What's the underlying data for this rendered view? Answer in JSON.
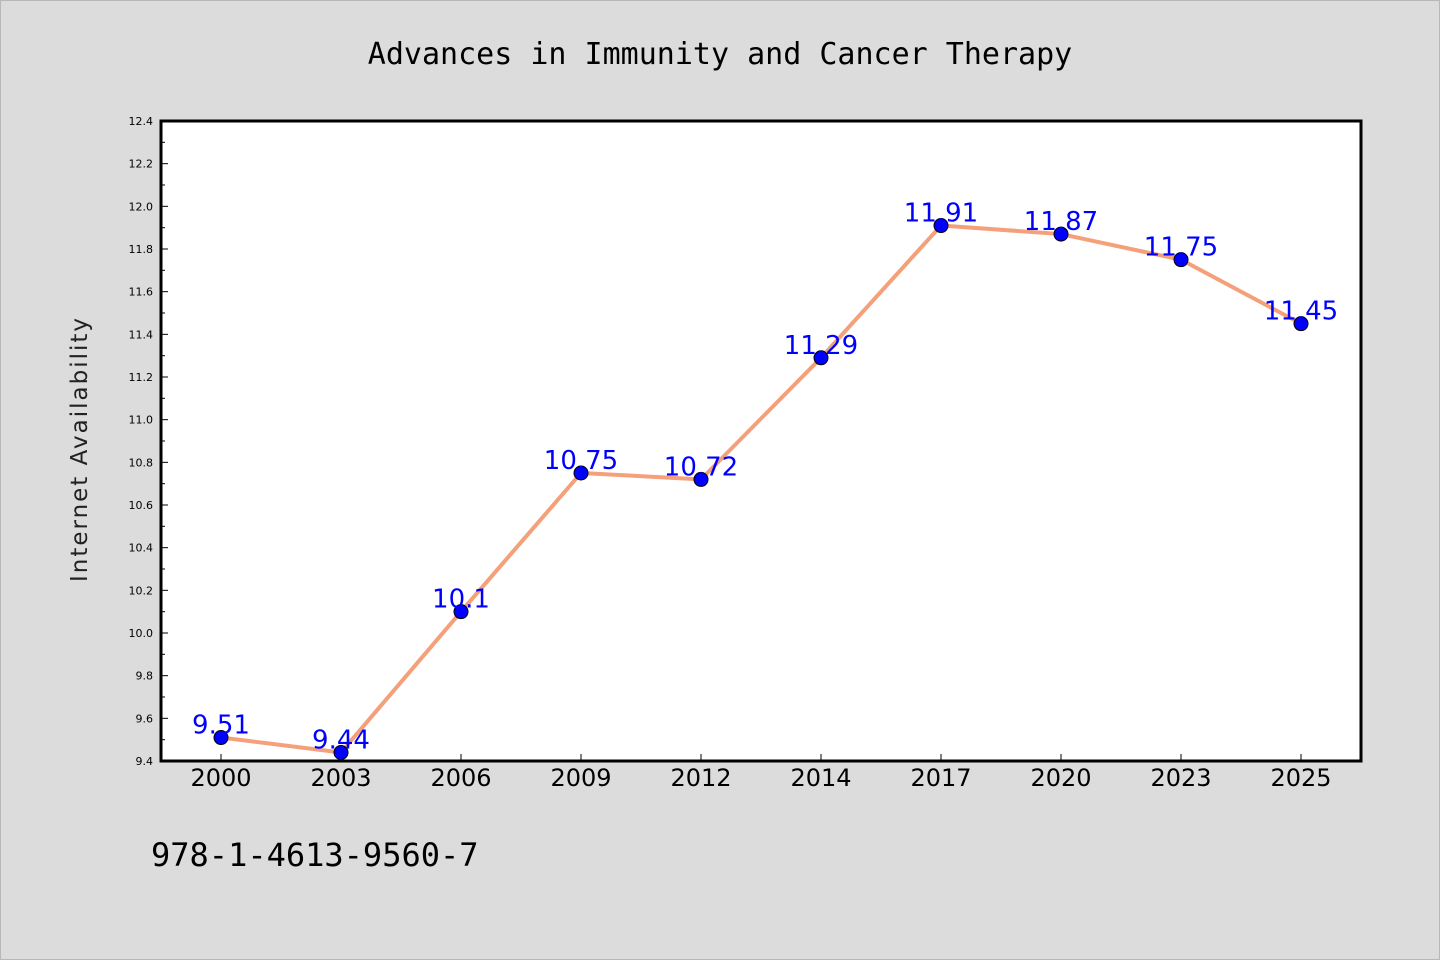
{
  "chart_data": {
    "type": "line",
    "title": "Advances in Immunity and Cancer Therapy",
    "xlabel": "",
    "ylabel": "Internet Availability",
    "categories": [
      "2000",
      "2003",
      "2006",
      "2009",
      "2012",
      "2014",
      "2017",
      "2020",
      "2023",
      "2025"
    ],
    "series": [
      {
        "values": [
          9.51,
          9.44,
          10.1,
          10.75,
          10.72,
          11.29,
          11.91,
          11.87,
          11.75,
          11.45
        ],
        "labels": [
          "9.51",
          "9.44",
          "10.1",
          "10.75",
          "10.72",
          "11.29",
          "11.91",
          "11.87",
          "11.75",
          "11.45"
        ],
        "line_color": "#f4a07a",
        "marker_color": "#0000ff"
      }
    ],
    "ylim": [
      9.4,
      12.4
    ],
    "yticks": [
      9.4,
      9.6,
      9.8,
      10.0,
      10.2,
      10.4,
      10.6,
      10.8,
      11.0,
      11.2,
      11.4,
      11.6,
      11.8,
      12.0,
      12.2,
      12.4
    ],
    "ytick_labels": [
      "9.4",
      "9.6",
      "9.8",
      "10.0",
      "10.2",
      "10.4",
      "10.6",
      "10.8",
      "11.0",
      "11.2",
      "11.4",
      "11.6",
      "11.8",
      "12.0",
      "12.2",
      "12.4"
    ],
    "grid": false,
    "legend": "none",
    "label_color": "#0000ff",
    "background_color": "#dcdcdc",
    "plot_background_color": "#ffffff"
  },
  "footnote": "978-1-4613-9560-7"
}
